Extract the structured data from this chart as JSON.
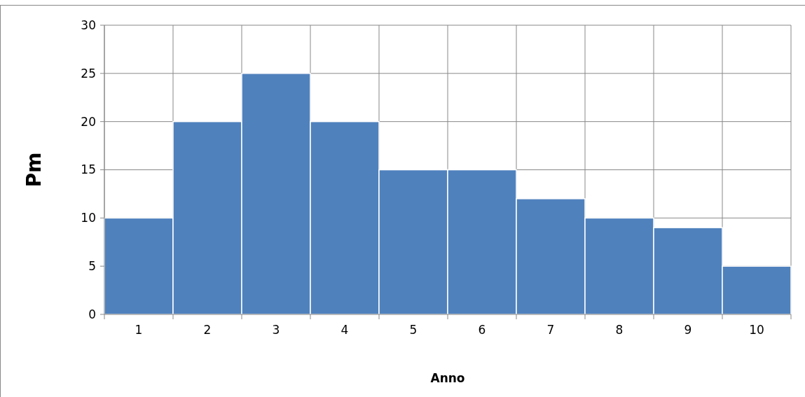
{
  "chart_data": {
    "type": "bar",
    "xlabel": "Anno",
    "ylabel": "Pm",
    "categories": [
      "1",
      "2",
      "3",
      "4",
      "5",
      "6",
      "7",
      "8",
      "9",
      "10"
    ],
    "values": [
      10,
      20,
      25,
      20,
      15,
      15,
      12,
      10,
      9,
      5
    ],
    "color": "#4f81bd",
    "ylim": [
      0,
      30
    ],
    "yticks": [
      0,
      5,
      10,
      15,
      20,
      25,
      30
    ],
    "grid": true
  }
}
